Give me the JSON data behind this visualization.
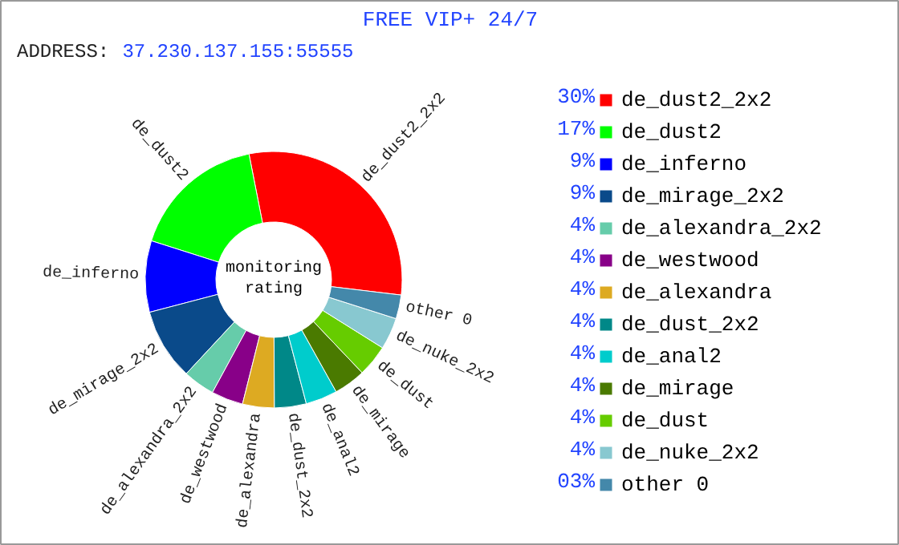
{
  "chart_data": {
    "type": "donut",
    "title": "FREE VIP+ 24/7",
    "subtitle": "ADDRESS: 37.230.137.155:55555",
    "annotations": [
      "monitoring\nrating"
    ],
    "categories": [
      "de_dust2_2x2",
      "de_dust2",
      "de_inferno",
      "de_mirage_2x2",
      "de_alexandra_2x2",
      "de_westwood",
      "de_alexandra",
      "de_dust_2x2",
      "de_anal2",
      "de_mirage",
      "de_dust",
      "de_nuke_2x2",
      "other 0"
    ],
    "values": [
      30,
      17,
      9,
      9,
      4,
      4,
      4,
      4,
      4,
      4,
      4,
      4,
      3
    ],
    "value_labels": [
      "30%",
      "17%",
      "9%",
      "9%",
      "4%",
      "4%",
      "4%",
      "4%",
      "4%",
      "4%",
      "4%",
      "4%",
      "03%"
    ],
    "colors": [
      "#ff0000",
      "#00ff00",
      "#0000ff",
      "#0a4a8a",
      "#66ccaa",
      "#880088",
      "#ddaa22",
      "#008888",
      "#00cccc",
      "#4a7a00",
      "#66cc00",
      "#88c8d0",
      "#4488aa"
    ],
    "legend": "right"
  }
}
